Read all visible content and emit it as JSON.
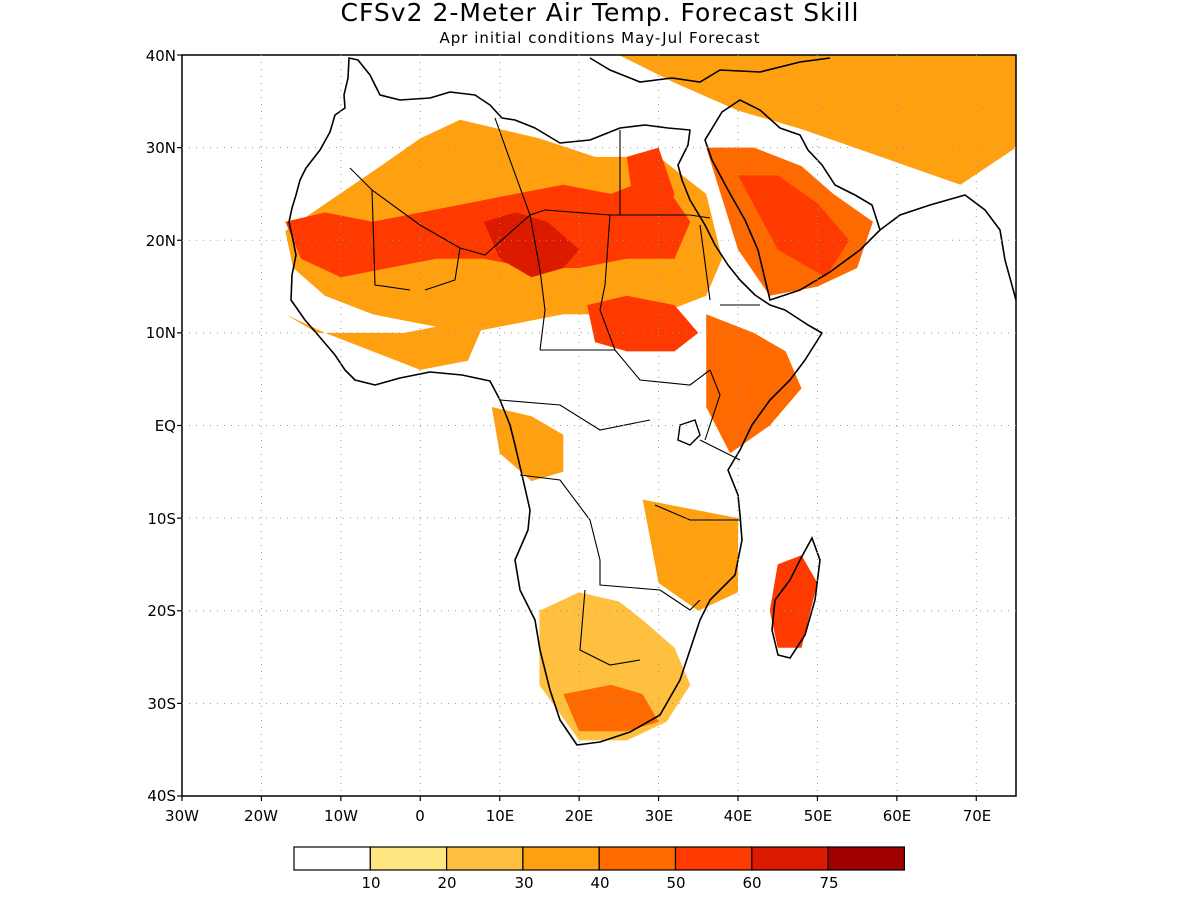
{
  "title": "CFSv2 2-Meter Air Temp. Forecast Skill",
  "subtitle": "Apr initial conditions  May-Jul Forecast",
  "lat_labels": [
    "40N",
    "30N",
    "20N",
    "10N",
    "EQ",
    "10S",
    "20S",
    "30S",
    "40S"
  ],
  "lon_labels": [
    "30W",
    "20W",
    "10W",
    "0",
    "10E",
    "20E",
    "30E",
    "40E",
    "50E",
    "60E",
    "70E"
  ],
  "colorbar": {
    "colors": [
      "#ffffff",
      "#ffe680",
      "#ffc040",
      "#ffa010",
      "#ff6a00",
      "#ff3a00",
      "#dc1a00",
      "#a00000"
    ],
    "labels": [
      "10",
      "20",
      "30",
      "40",
      "50",
      "60",
      "75"
    ]
  },
  "extent": {
    "lon_min": -30,
    "lon_max": 75,
    "lat_min": -40,
    "lat_max": 40
  },
  "skill_regions": [
    {
      "level": 3,
      "lon": [
        -17,
        -5,
        0,
        5,
        10,
        15,
        22,
        30,
        36,
        38,
        36,
        30,
        24,
        18,
        12,
        6,
        0,
        -6,
        -12,
        -16
      ],
      "lat": [
        21,
        28,
        31,
        33,
        32,
        31,
        29,
        29,
        25,
        18,
        14,
        12,
        12,
        12,
        11,
        10,
        11,
        12,
        14,
        17
      ]
    },
    {
      "level": 5,
      "lon": [
        -17,
        -12,
        -6,
        0,
        6,
        12,
        18,
        24,
        30,
        34,
        32,
        26,
        20,
        14,
        8,
        2,
        -4,
        -10,
        -15
      ],
      "lat": [
        22,
        23,
        22,
        23,
        24,
        25,
        26,
        25,
        27,
        22,
        18,
        18,
        17,
        17,
        18,
        18,
        17,
        16,
        18
      ]
    },
    {
      "level": 6,
      "lon": [
        8,
        12,
        16,
        20,
        18,
        14,
        10
      ],
      "lat": [
        22,
        23,
        22,
        19,
        17,
        16,
        18
      ]
    },
    {
      "level": 5,
      "lon": [
        26,
        30,
        32,
        30,
        27
      ],
      "lat": [
        29,
        30,
        25,
        21,
        23
      ]
    },
    {
      "level": 5,
      "lon": [
        21,
        26,
        32,
        35,
        32,
        26,
        22
      ],
      "lat": [
        13,
        14,
        13,
        10,
        8,
        8,
        9
      ]
    },
    {
      "level": 4,
      "lon": [
        36,
        42,
        48,
        52,
        57,
        55,
        50,
        44,
        40
      ],
      "lat": [
        30,
        30,
        28,
        25,
        22,
        17,
        15,
        14,
        19
      ]
    },
    {
      "level": 5,
      "lon": [
        40,
        45,
        50,
        54,
        51,
        45
      ],
      "lat": [
        27,
        27,
        24,
        20,
        16,
        19
      ]
    },
    {
      "level": 3,
      "lon": [
        25,
        35,
        45,
        55,
        65,
        75,
        75,
        68,
        58,
        48,
        40,
        32
      ],
      "lat": [
        40,
        40,
        40,
        40,
        40,
        40,
        30,
        26,
        29,
        32,
        34,
        37
      ]
    },
    {
      "level": 3,
      "lon": [
        -17,
        -12,
        -6,
        0,
        6,
        8,
        4,
        -2,
        -8,
        -13
      ],
      "lat": [
        12,
        10,
        8,
        6,
        7,
        11,
        11,
        10,
        10,
        10
      ]
    },
    {
      "level": 4,
      "lon": [
        36,
        42,
        46,
        48,
        44,
        39,
        36
      ],
      "lat": [
        12,
        10,
        8,
        4,
        0,
        -3,
        2
      ]
    },
    {
      "level": 3,
      "lon": [
        9,
        14,
        18,
        18,
        14,
        10
      ],
      "lat": [
        2,
        1,
        -1,
        -5,
        -6,
        -3
      ]
    },
    {
      "level": 3,
      "lon": [
        28,
        34,
        40,
        40,
        35,
        30
      ],
      "lat": [
        -8,
        -9,
        -10,
        -18,
        -20,
        -17
      ]
    },
    {
      "level": 2,
      "lon": [
        15,
        20,
        25,
        28,
        32,
        34,
        31,
        26,
        20,
        15
      ],
      "lat": [
        -20,
        -18,
        -19,
        -21,
        -24,
        -28,
        -32,
        -34,
        -34,
        -28
      ]
    },
    {
      "level": 4,
      "lon": [
        18,
        24,
        28,
        30,
        26,
        20
      ],
      "lat": [
        -29,
        -28,
        -29,
        -32,
        -33,
        -33
      ]
    },
    {
      "level": 5,
      "lon": [
        45,
        48,
        50,
        48,
        45,
        44
      ],
      "lat": [
        -15,
        -14,
        -17,
        -24,
        -24,
        -20
      ]
    }
  ]
}
